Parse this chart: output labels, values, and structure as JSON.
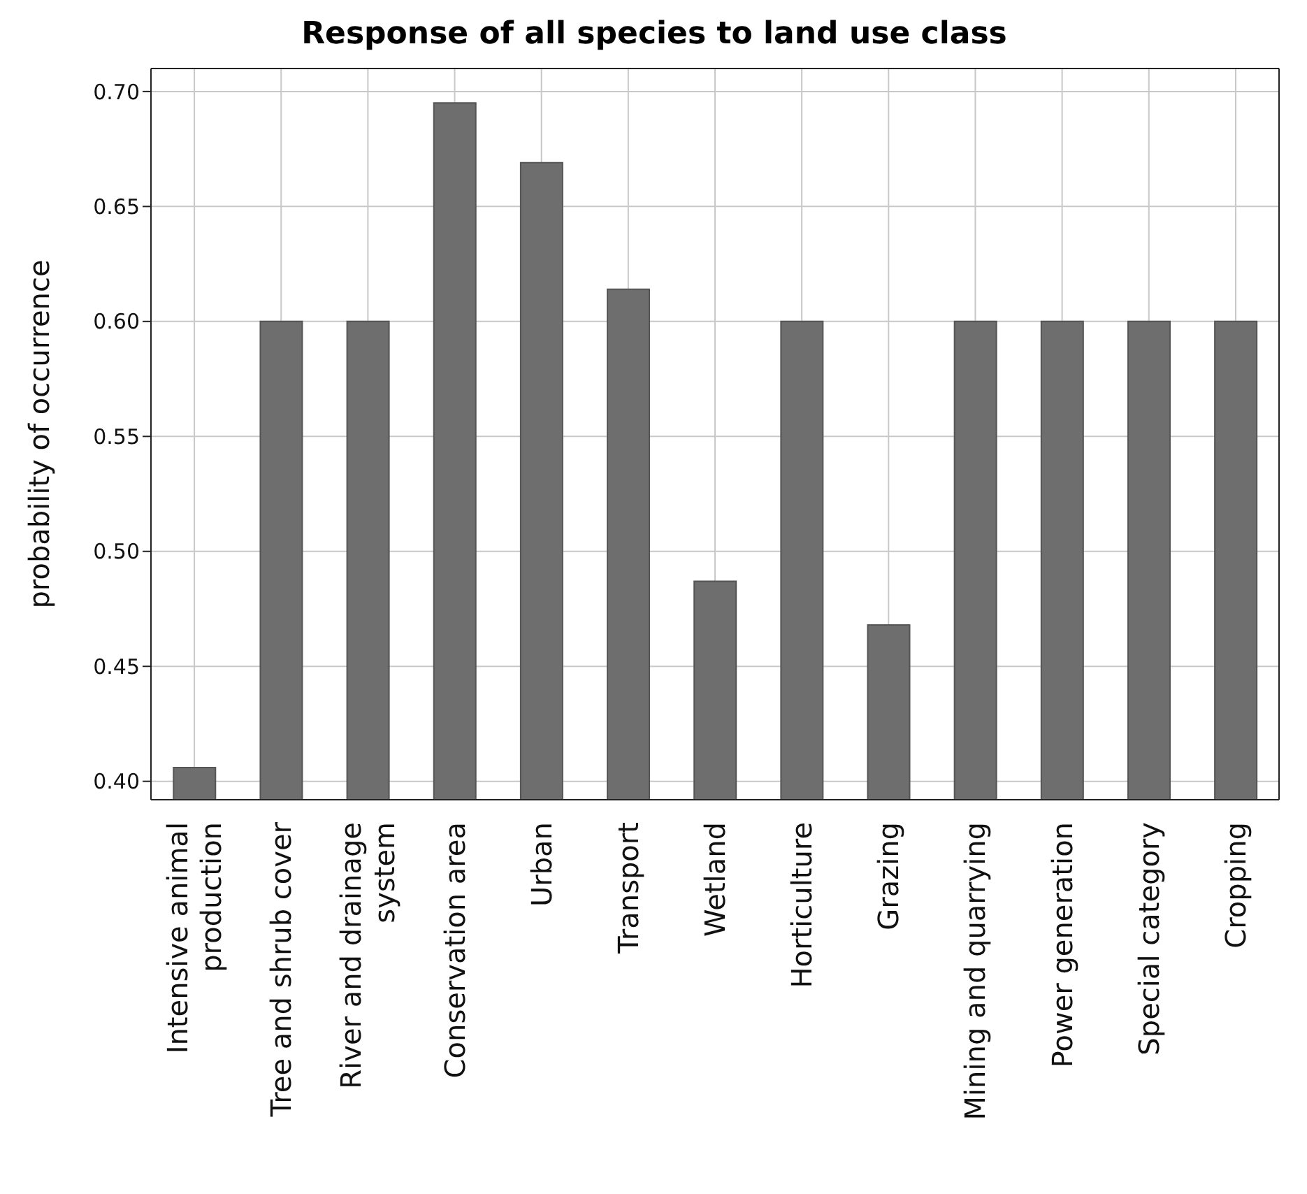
{
  "chart_data": {
    "type": "bar",
    "title": "Response of all species to land use class",
    "ylabel": "probability of occurrence",
    "categories": [
      "Intensive animal production",
      "Tree and shrub cover",
      "River and drainage system",
      "Conservation area",
      "Urban",
      "Transport",
      "Wetland",
      "Horticulture",
      "Grazing",
      "Mining and quarrying",
      "Power generation",
      "Special category",
      "Cropping"
    ],
    "values": [
      0.406,
      0.6,
      0.6,
      0.695,
      0.669,
      0.614,
      0.487,
      0.6,
      0.468,
      0.6,
      0.6,
      0.6,
      0.6
    ],
    "color": "#6e6e6e",
    "ylim": [
      0.392,
      0.71
    ],
    "yticks": [
      {
        "value": 0.4,
        "label": "0.40"
      },
      {
        "value": 0.45,
        "label": "0.45"
      },
      {
        "value": 0.5,
        "label": "0.50"
      },
      {
        "value": 0.55,
        "label": "0.55"
      },
      {
        "value": 0.6,
        "label": "0.60"
      },
      {
        "value": 0.65,
        "label": "0.65"
      },
      {
        "value": 0.7,
        "label": "0.70"
      }
    ],
    "grid": true,
    "legend": false
  }
}
